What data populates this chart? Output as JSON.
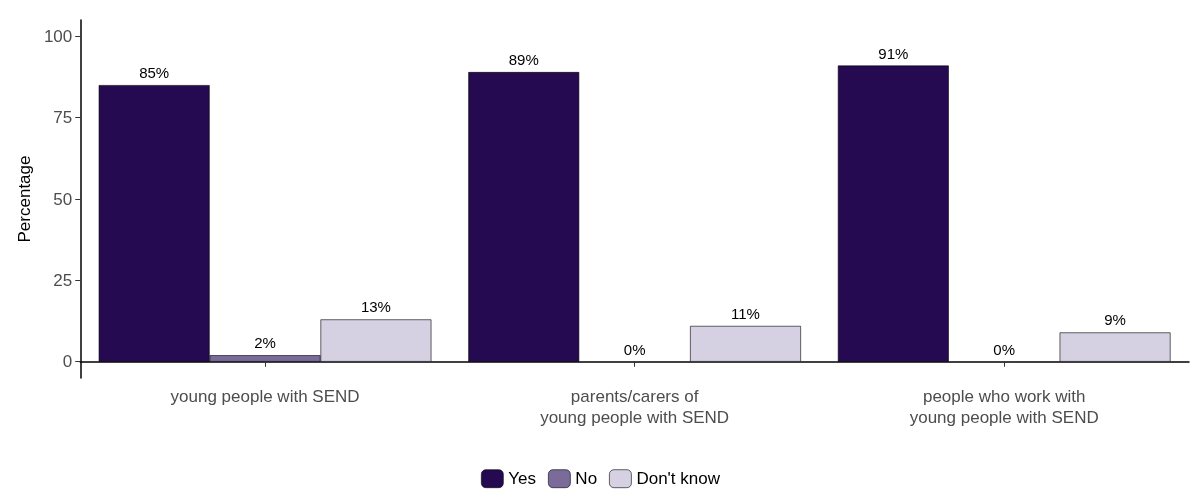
{
  "chart_data": {
    "type": "bar",
    "ylabel": "Percentage",
    "categories": [
      "young people with SEND",
      "parents/carers of\nyoung people with SEND",
      "people who work with\nyoung people with SEND"
    ],
    "series": [
      {
        "name": "Yes",
        "color": "#250a52",
        "values": [
          85,
          89,
          91
        ],
        "value_labels": [
          "85%",
          "89%",
          "91%"
        ]
      },
      {
        "name": "No",
        "color": "#7b6b9b",
        "values": [
          2,
          0,
          0
        ],
        "value_labels": [
          "2%",
          "0%",
          "0%"
        ]
      },
      {
        "name": "Don't know",
        "color": "#d5d0e2",
        "values": [
          13,
          11,
          9
        ],
        "value_labels": [
          "13%",
          "11%",
          "9%"
        ]
      }
    ],
    "ylim": [
      -5,
      105
    ],
    "yticks": [
      0,
      25,
      50,
      75,
      100
    ],
    "grid": false,
    "legend": "bottom"
  }
}
